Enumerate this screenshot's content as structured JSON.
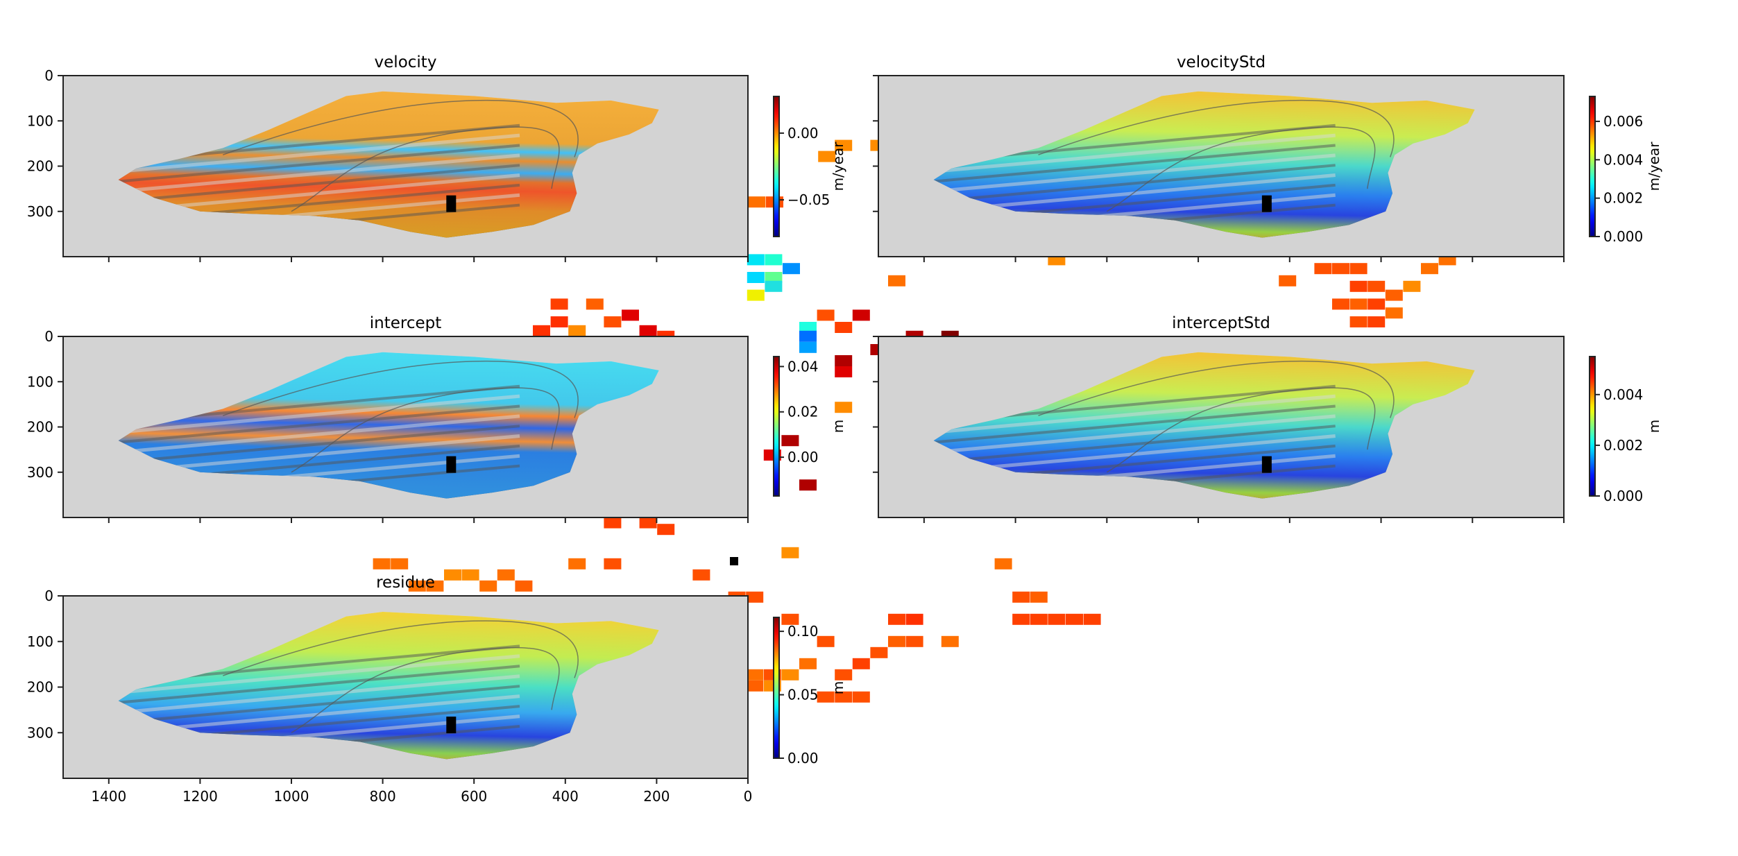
{
  "chart_data": {
    "type": "heatmap",
    "colormap": "jet",
    "xlim": [
      1500,
      0
    ],
    "ylim": [
      400,
      0
    ],
    "xticks": [
      1400,
      1200,
      1000,
      800,
      600,
      400,
      200,
      0
    ],
    "xtick_labels": [
      "1400",
      "1200",
      "1000",
      "800",
      "600",
      "400",
      "200",
      "0"
    ],
    "yticks": [
      0,
      100,
      200,
      300
    ],
    "ytick_labels": [
      "0",
      "100",
      "200",
      "300"
    ],
    "background_color": "#d3d3d3",
    "marker": {
      "x": 650,
      "y": 283,
      "color": "#000000"
    },
    "panels": [
      {
        "title": "velocity",
        "colorbar_label": "m/year",
        "clim": [
          -0.0775,
          0.0275
        ],
        "colorbar_ticks": [
          {
            "value": 0.0,
            "label": "0.00"
          },
          {
            "value": -0.05,
            "label": "−0.05"
          }
        ]
      },
      {
        "title": "velocityStd",
        "colorbar_label": "m/year",
        "clim": [
          0.0,
          0.0073
        ],
        "colorbar_ticks": [
          {
            "value": 0.0,
            "label": "0.000"
          },
          {
            "value": 0.002,
            "label": "0.002"
          },
          {
            "value": 0.004,
            "label": "0.004"
          },
          {
            "value": 0.006,
            "label": "0.006"
          }
        ]
      },
      {
        "title": "intercept",
        "colorbar_label": "m",
        "clim": [
          -0.0171,
          0.0444
        ],
        "colorbar_ticks": [
          {
            "value": 0.0,
            "label": "0.00"
          },
          {
            "value": 0.02,
            "label": "0.02"
          },
          {
            "value": 0.04,
            "label": "0.04"
          }
        ]
      },
      {
        "title": "interceptStd",
        "colorbar_label": "m",
        "clim": [
          0.0,
          0.0055
        ],
        "colorbar_ticks": [
          {
            "value": 0.0,
            "label": "0.000"
          },
          {
            "value": 0.002,
            "label": "0.002"
          },
          {
            "value": 0.004,
            "label": "0.004"
          }
        ]
      },
      {
        "title": "residue",
        "colorbar_label": "m",
        "clim": [
          0.0,
          0.111
        ],
        "colorbar_ticks": [
          {
            "value": 0.0,
            "label": "0.00"
          },
          {
            "value": 0.05,
            "label": "0.05"
          },
          {
            "value": 0.1,
            "label": "0.10"
          }
        ]
      }
    ]
  }
}
